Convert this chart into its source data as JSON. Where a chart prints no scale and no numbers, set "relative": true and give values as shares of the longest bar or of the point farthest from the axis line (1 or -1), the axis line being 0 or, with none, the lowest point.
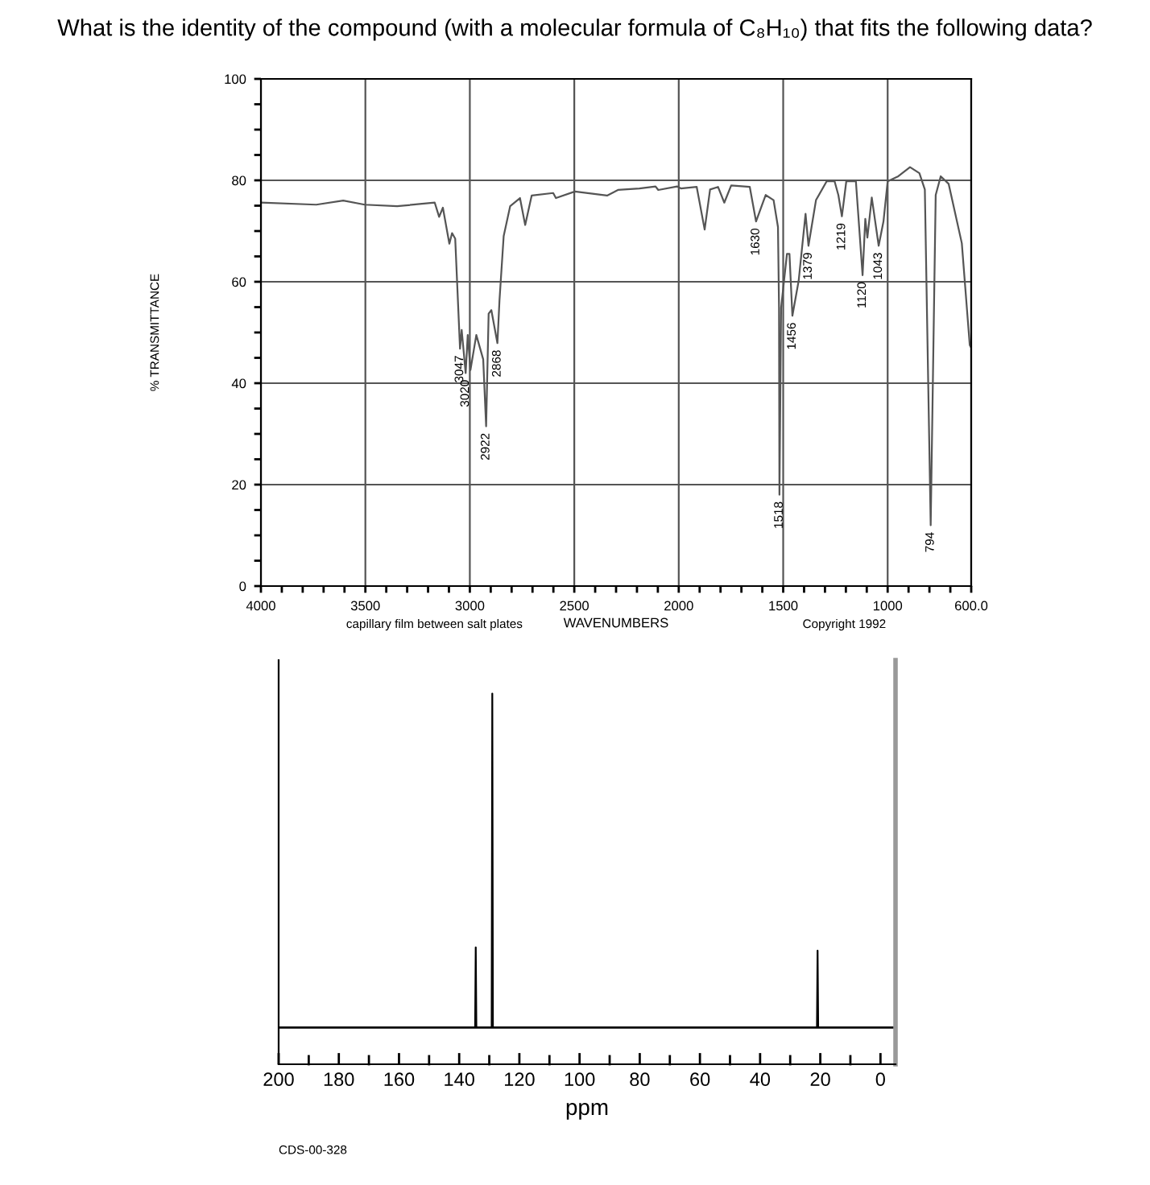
{
  "chart_data": [
    {
      "type": "line",
      "title": "What is the identity of the compound (with a molecular formula of C₈H₁₀) that fits the following data?",
      "xlabel": "WAVENUMBERS",
      "ylabel": "% TRANSMITTANCE",
      "xlim": [
        4000,
        600
      ],
      "ylim": [
        0,
        100
      ],
      "xticks": [
        4000,
        3500,
        3000,
        2500,
        2000,
        1500,
        1000,
        {
          "value": 600,
          "label": "600.0"
        },
        {
          "value": 3900,
          "label": null
        },
        {
          "value": 3800,
          "label": null
        },
        {
          "value": 3700,
          "label": null
        },
        {
          "value": 3600,
          "label": null
        },
        {
          "value": 3400,
          "label": null
        },
        {
          "value": 3300,
          "label": null
        },
        {
          "value": 3200,
          "label": null
        },
        {
          "value": 3100,
          "label": null
        },
        {
          "value": 2900,
          "label": null
        },
        {
          "value": 2800,
          "label": null
        },
        {
          "value": 2700,
          "label": null
        },
        {
          "value": 2600,
          "label": null
        },
        {
          "value": 2400,
          "label": null
        },
        {
          "value": 2300,
          "label": null
        },
        {
          "value": 2200,
          "label": null
        },
        {
          "value": 2100,
          "label": null
        },
        {
          "value": 1900,
          "label": null
        },
        {
          "value": 1800,
          "label": null
        },
        {
          "value": 1700,
          "label": null
        },
        {
          "value": 1600,
          "label": null
        },
        {
          "value": 1400,
          "label": null
        },
        {
          "value": 1300,
          "label": null
        },
        {
          "value": 1200,
          "label": null
        },
        {
          "value": 1100,
          "label": null
        },
        {
          "value": 900,
          "label": null
        },
        {
          "value": 800,
          "label": null
        },
        {
          "value": 700,
          "label": null
        }
      ],
      "yticks": [
        0,
        20,
        40,
        60,
        80,
        100,
        {
          "value": 5,
          "label": null
        },
        {
          "value": 10,
          "label": null
        },
        {
          "value": 15,
          "label": null
        },
        {
          "value": 25,
          "label": null
        },
        {
          "value": 30,
          "label": null
        },
        {
          "value": 35,
          "label": null
        },
        {
          "value": 45,
          "label": null
        },
        {
          "value": 50,
          "label": null
        },
        {
          "value": 55,
          "label": null
        },
        {
          "value": 65,
          "label": null
        },
        {
          "value": 70,
          "label": null
        },
        {
          "value": 75,
          "label": null
        },
        {
          "value": 85,
          "label": null
        },
        {
          "value": 90,
          "label": null
        },
        {
          "value": 95,
          "label": null
        }
      ],
      "grid": true,
      "legend": false,
      "marker": "none",
      "line_style": "solid",
      "series": [
        {
          "color": "#555555",
          "x": [
            4000,
            3735,
            3606,
            3503,
            3348,
            3168,
            3147,
            3129,
            3098,
            3085,
            3070,
            3047,
            3039,
            3020,
            3010,
            2997,
            2969,
            2936,
            2922,
            2910,
            2897,
            2868,
            2858,
            2838,
            2807,
            2760,
            2735,
            2704,
            2601,
            2588,
            2497,
            2343,
            2291,
            2188,
            2111,
            2098,
            2008,
            1990,
            1914,
            1876,
            1850,
            1812,
            1782,
            1749,
            1660,
            1630,
            1584,
            1546,
            1525,
            1520,
            1518,
            1510,
            1482,
            1470,
            1456,
            1426,
            1393,
            1379,
            1343,
            1292,
            1254,
            1236,
            1219,
            1198,
            1152,
            1120,
            1107,
            1097,
            1076,
            1043,
            1020,
            1000,
            949,
            893,
            848,
            822,
            794,
            770,
            746,
            708,
            645,
            607,
            600
          ],
          "values": [
            75.6,
            75.2,
            76,
            75.2,
            74.9,
            75.6,
            72.8,
            74.6,
            67.5,
            69.6,
            68.5,
            46.8,
            50.5,
            42,
            49.5,
            42.6,
            49.5,
            44.7,
            31.5,
            53.7,
            54.4,
            47.9,
            56.4,
            69,
            74.9,
            76.5,
            71.2,
            77,
            77.5,
            76.5,
            77.8,
            77,
            78.1,
            78.4,
            78.8,
            78.1,
            78.8,
            78.4,
            78.7,
            70.3,
            78.2,
            78.7,
            75.6,
            79,
            78.7,
            71.9,
            77.1,
            76.1,
            70.8,
            54.9,
            18,
            54.9,
            65.5,
            65.5,
            53.3,
            60.2,
            73.4,
            67.1,
            76.1,
            79.8,
            79.8,
            77.1,
            72.9,
            79.8,
            79.8,
            61.3,
            72.4,
            68.7,
            76.6,
            67.1,
            71.9,
            79.8,
            80.8,
            82.6,
            81.4,
            78.2,
            12,
            77.1,
            80.8,
            79.3,
            67.6,
            47.5,
            47
          ]
        }
      ],
      "annotations": [
        {
          "text": "3047",
          "x": 3047,
          "y": 46.8
        },
        {
          "text": "3020",
          "x": 3020,
          "y": 42
        },
        {
          "text": "2922",
          "x": 2922,
          "y": 31.5
        },
        {
          "text": "2868",
          "x": 2868,
          "y": 47.9
        },
        {
          "text": "1630",
          "x": 1630,
          "y": 71.9
        },
        {
          "text": "1518",
          "x": 1518,
          "y": 18
        },
        {
          "text": "1456",
          "x": 1456,
          "y": 53.3
        },
        {
          "text": "1379",
          "x": 1379,
          "y": 67.1
        },
        {
          "text": "1219",
          "x": 1219,
          "y": 72.9
        },
        {
          "text": "1120",
          "x": 1120,
          "y": 61.3
        },
        {
          "text": "1043",
          "x": 1043,
          "y": 67.1
        },
        {
          "text": "794",
          "x": 794,
          "y": 12
        },
        "capillary film between salt plates",
        "Copyright 1992"
      ]
    },
    {
      "type": "line",
      "xlabel": "ppm",
      "relative": true,
      "xlim": [
        200,
        -5
      ],
      "xticks": [
        200,
        180,
        160,
        140,
        120,
        100,
        80,
        60,
        40,
        20,
        0
      ],
      "grid": false,
      "legend": false,
      "marker": "none",
      "line_style": "solid",
      "series": [
        {
          "color": "#000000",
          "x": [
            200,
            134.7,
            134.5,
            134.3,
            129.2,
            129.0,
            128.8,
            21.1,
            20.9,
            20.7,
            -5
          ],
          "values": [
            0,
            0,
            0.24,
            0,
            0,
            1,
            0,
            0,
            0.23,
            0,
            0
          ]
        }
      ],
      "annotations": [
        "CDS-00-328"
      ]
    }
  ]
}
